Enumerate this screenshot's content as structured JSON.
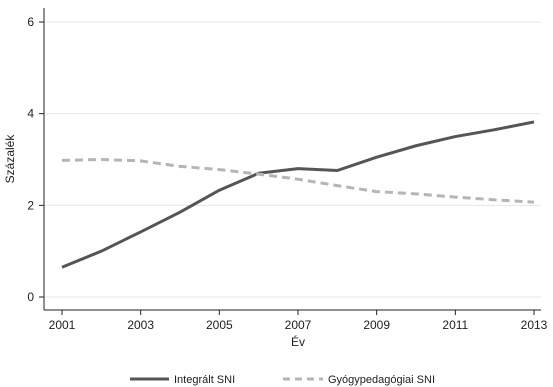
{
  "chart_data": {
    "type": "line",
    "xlabel": "Év",
    "ylabel": "Százalék",
    "xlim": [
      2001,
      2013
    ],
    "ylim": [
      0,
      6
    ],
    "x_ticks": [
      "2001",
      "2003",
      "2005",
      "2007",
      "2009",
      "2011",
      "2013"
    ],
    "y_ticks": [
      "0",
      "2",
      "4",
      "6"
    ],
    "grid": true,
    "legend_position": "bottom",
    "x": [
      2001,
      2002,
      2003,
      2004,
      2005,
      2006,
      2007,
      2008,
      2009,
      2010,
      2011,
      2012,
      2013
    ],
    "series": [
      {
        "name": "Integrált SNI",
        "style": "solid",
        "color": "#555555",
        "values": [
          0.65,
          1.0,
          1.42,
          1.85,
          2.33,
          2.7,
          2.8,
          2.76,
          3.05,
          3.3,
          3.5,
          3.65,
          3.82
        ]
      },
      {
        "name": "Gyógypedagógiai SNI",
        "style": "dashed",
        "color": "#b5b5b5",
        "values": [
          2.98,
          3.0,
          2.97,
          2.85,
          2.78,
          2.68,
          2.57,
          2.43,
          2.3,
          2.25,
          2.18,
          2.12,
          2.07
        ]
      }
    ]
  }
}
